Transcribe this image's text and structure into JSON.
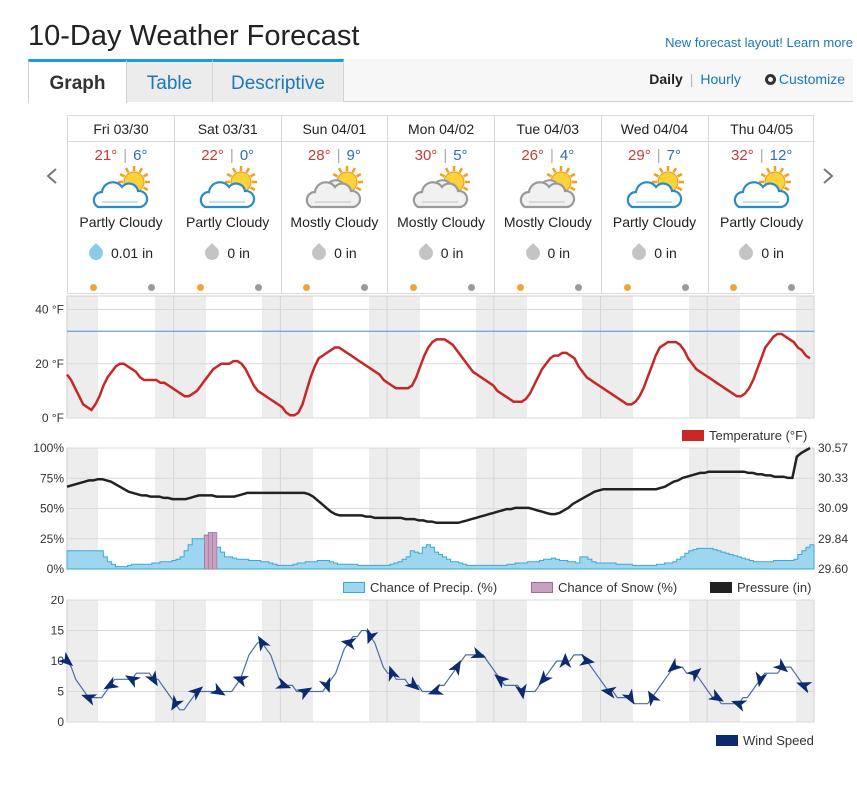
{
  "title": "10-Day Weather Forecast",
  "top_link": "New forecast layout! Learn more",
  "tabs": [
    {
      "label": "Graph"
    },
    {
      "label": "Table"
    },
    {
      "label": "Descriptive"
    }
  ],
  "view": {
    "daily": "Daily",
    "separator": "|",
    "hourly": "Hourly",
    "customize": "Customize"
  },
  "days": [
    {
      "date": "Fri 03/30",
      "hi": "21°",
      "lo": "6°",
      "cond": "Partly Cloudy",
      "icon": "partly-cloudy-icon",
      "precip": "0.01 in",
      "drop_color": "#8ccbe8"
    },
    {
      "date": "Sat 03/31",
      "hi": "22°",
      "lo": "0°",
      "cond": "Partly Cloudy",
      "icon": "partly-cloudy-icon",
      "precip": "0 in",
      "drop_color": "#c4c4c4"
    },
    {
      "date": "Sun 04/01",
      "hi": "28°",
      "lo": "9°",
      "cond": "Mostly Cloudy",
      "icon": "mostly-cloudy-icon",
      "precip": "0 in",
      "drop_color": "#c4c4c4"
    },
    {
      "date": "Mon 04/02",
      "hi": "30°",
      "lo": "5°",
      "cond": "Mostly Cloudy",
      "icon": "mostly-cloudy-icon",
      "precip": "0 in",
      "drop_color": "#c4c4c4"
    },
    {
      "date": "Tue 04/03",
      "hi": "26°",
      "lo": "4°",
      "cond": "Mostly Cloudy",
      "icon": "mostly-cloudy-icon",
      "precip": "0 in",
      "drop_color": "#c4c4c4"
    },
    {
      "date": "Wed 04/04",
      "hi": "29°",
      "lo": "7°",
      "cond": "Partly Cloudy",
      "icon": "partly-cloudy-icon",
      "precip": "0 in",
      "drop_color": "#c4c4c4"
    },
    {
      "date": "Thu 04/05",
      "hi": "32°",
      "lo": "12°",
      "cond": "Partly Cloudy",
      "icon": "partly-cloudy-icon",
      "precip": "0 in",
      "drop_color": "#c4c4c4"
    }
  ],
  "colors": {
    "temp_line": "#c62828",
    "pressure_line": "#222222",
    "precip_fill": "#9ed6ef",
    "precip_stroke": "#3aa9d6",
    "snow_fill": "#c9a0c0",
    "wind_line": "#4a6ea8",
    "wind_arrow": "#0c2a6e",
    "freeze_line": "#6a9fd9"
  },
  "chart_data": [
    {
      "type": "line",
      "yticks": [
        "40 °F",
        "20 °F",
        "0 °F"
      ],
      "ylim": [
        0,
        45
      ],
      "freeze_line": 32,
      "series": [
        {
          "name": "Temperature (°F)",
          "values": [
            16,
            14,
            11,
            8,
            5,
            4,
            3,
            5,
            8,
            12,
            15,
            17,
            19,
            20,
            20,
            19,
            18,
            17,
            15,
            14,
            14,
            14,
            14,
            13,
            13,
            12,
            11,
            10,
            9,
            8,
            8,
            9,
            10,
            12,
            14,
            16,
            18,
            19,
            20,
            20,
            20,
            21,
            21,
            20,
            18,
            15,
            12,
            10,
            9,
            8,
            7,
            6,
            5,
            4,
            2,
            1,
            1,
            2,
            5,
            10,
            15,
            19,
            22,
            23,
            24,
            25,
            26,
            26,
            25,
            24,
            23,
            22,
            21,
            20,
            19,
            18,
            17,
            16,
            14,
            13,
            12,
            11,
            11,
            11,
            11,
            12,
            15,
            19,
            23,
            26,
            28,
            29,
            29,
            29,
            28,
            27,
            25,
            23,
            21,
            19,
            17,
            16,
            15,
            14,
            13,
            12,
            10,
            9,
            8,
            7,
            6,
            6,
            6,
            7,
            9,
            12,
            15,
            18,
            20,
            22,
            23,
            23,
            24,
            24,
            23,
            22,
            19,
            17,
            15,
            14,
            13,
            12,
            11,
            10,
            9,
            8,
            7,
            6,
            5,
            5,
            6,
            8,
            11,
            15,
            19,
            23,
            26,
            27,
            28,
            28,
            28,
            27,
            25,
            22,
            20,
            18,
            17,
            16,
            15,
            14,
            13,
            12,
            11,
            10,
            9,
            8,
            8,
            9,
            11,
            14,
            18,
            22,
            26,
            28,
            30,
            31,
            31,
            30,
            29,
            28,
            26,
            25,
            23,
            22
          ]
        }
      ]
    },
    {
      "type": "line",
      "yticks_left": [
        "100%",
        "75%",
        "50%",
        "25%",
        "0%"
      ],
      "yticks_right": [
        "30.57",
        "30.33",
        "30.09",
        "29.84",
        "29.60"
      ],
      "ylim_left": [
        0,
        100
      ],
      "ylim_right": [
        29.6,
        30.57
      ],
      "series": [
        {
          "name": "Chance of Precip. (%)",
          "values": [
            15,
            15,
            15,
            15,
            15,
            15,
            15,
            15,
            15,
            10,
            6,
            4,
            2,
            2,
            2,
            3,
            4,
            4,
            4,
            4,
            4,
            5,
            5,
            6,
            6,
            6,
            7,
            8,
            10,
            15,
            20,
            25,
            25,
            25,
            28,
            30,
            30,
            18,
            14,
            10,
            10,
            9,
            8,
            8,
            8,
            7,
            7,
            7,
            6,
            6,
            5,
            4,
            3,
            3,
            3,
            3,
            4,
            5,
            5,
            6,
            6,
            6,
            7,
            7,
            7,
            6,
            5,
            4,
            4,
            4,
            4,
            4,
            3,
            3,
            3,
            3,
            3,
            3,
            3,
            3,
            4,
            5,
            6,
            8,
            10,
            15,
            14,
            13,
            18,
            20,
            18,
            14,
            12,
            10,
            8,
            6,
            6,
            5,
            4,
            3,
            3,
            3,
            3,
            3,
            3,
            3,
            3,
            3,
            3,
            4,
            4,
            5,
            5,
            5,
            6,
            6,
            6,
            7,
            8,
            8,
            9,
            8,
            7,
            7,
            6,
            6,
            5,
            10,
            10,
            8,
            6,
            5,
            5,
            5,
            5,
            5,
            4,
            4,
            4,
            4,
            3,
            3,
            3,
            3,
            3,
            3,
            4,
            4,
            5,
            5,
            6,
            8,
            10,
            13,
            15,
            16,
            17,
            17,
            17,
            17,
            16,
            15,
            14,
            13,
            12,
            11,
            10,
            9,
            8,
            7,
            6,
            6,
            6,
            6,
            6,
            7,
            7,
            7,
            7,
            7,
            8,
            12,
            15,
            18,
            20
          ]
        },
        {
          "name": "Chance of Snow (%)",
          "values": [
            0,
            0,
            0,
            0,
            0,
            0,
            0,
            0,
            0,
            0,
            0,
            0,
            0,
            0,
            0,
            0,
            0,
            0,
            0,
            0,
            0,
            0,
            0,
            0,
            0,
            0,
            0,
            0,
            0,
            0,
            0,
            0,
            0,
            0,
            28,
            30,
            30,
            0,
            0,
            0,
            0,
            0,
            0,
            0,
            0,
            0,
            0,
            0,
            0,
            0,
            0,
            0,
            0,
            0,
            0,
            0,
            0,
            0,
            0,
            0,
            0,
            0,
            0,
            0,
            0,
            0,
            0,
            0,
            0,
            0,
            0,
            0,
            0,
            0,
            0,
            0,
            0,
            0,
            0,
            0,
            0,
            0,
            0,
            0,
            0,
            0,
            0,
            0,
            0,
            0,
            0,
            0,
            0,
            0,
            0,
            0,
            0,
            0,
            0,
            0,
            0,
            0,
            0,
            0,
            0,
            0,
            0,
            0,
            0,
            0,
            0,
            0,
            0,
            0,
            0,
            0,
            0,
            0,
            0,
            0,
            0,
            0,
            0,
            0,
            0,
            0,
            0,
            0,
            0,
            0,
            0,
            0,
            0,
            0,
            0,
            0,
            0,
            0,
            0,
            0,
            0,
            0,
            0,
            0,
            0,
            0,
            0,
            0,
            0,
            0,
            0,
            0,
            0,
            0,
            0,
            0,
            0,
            0,
            0,
            0,
            0,
            0,
            0,
            0,
            0,
            0,
            0,
            0,
            0,
            0,
            0,
            0,
            0,
            0,
            0,
            0,
            0,
            0,
            0,
            0,
            0,
            0,
            0,
            0,
            0,
            0,
            0,
            0,
            0
          ]
        },
        {
          "name": "Pressure (in)",
          "values": [
            30.26,
            30.27,
            30.28,
            30.29,
            30.3,
            30.31,
            30.31,
            30.32,
            30.32,
            30.31,
            30.3,
            30.28,
            30.26,
            30.24,
            30.22,
            30.21,
            30.2,
            30.19,
            30.19,
            30.18,
            30.18,
            30.18,
            30.17,
            30.17,
            30.16,
            30.16,
            30.16,
            30.16,
            30.17,
            30.18,
            30.19,
            30.19,
            30.19,
            30.19,
            30.18,
            30.18,
            30.18,
            30.18,
            30.18,
            30.19,
            30.2,
            30.21,
            30.21,
            30.21,
            30.21,
            30.21,
            30.21,
            30.21,
            30.21,
            30.21,
            30.21,
            30.21,
            30.21,
            30.21,
            30.21,
            30.2,
            30.18,
            30.15,
            30.12,
            30.09,
            30.06,
            30.04,
            30.03,
            30.03,
            30.03,
            30.03,
            30.03,
            30.03,
            30.02,
            30.02,
            30.01,
            30.01,
            30.01,
            30.01,
            30.01,
            30.01,
            30.01,
            30.0,
            30.0,
            30.0,
            29.99,
            29.99,
            29.98,
            29.98,
            29.97,
            29.97,
            29.97,
            29.97,
            29.97,
            29.97,
            29.98,
            29.99,
            30.0,
            30.01,
            30.02,
            30.03,
            30.04,
            30.05,
            30.06,
            30.07,
            30.08,
            30.08,
            30.09,
            30.09,
            30.09,
            30.09,
            30.08,
            30.07,
            30.06,
            30.05,
            30.04,
            30.04,
            30.05,
            30.07,
            30.09,
            30.12,
            30.14,
            30.16,
            30.18,
            30.2,
            30.22,
            30.23,
            30.24,
            30.24,
            30.24,
            30.24,
            30.24,
            30.24,
            30.24,
            30.24,
            30.24,
            30.24,
            30.24,
            30.24,
            30.24,
            30.25,
            30.26,
            30.28,
            30.3,
            30.31,
            30.33,
            30.34,
            30.35,
            30.36,
            30.37,
            30.37,
            30.38,
            30.38,
            30.38,
            30.38,
            30.38,
            30.38,
            30.38,
            30.38,
            30.38,
            30.37,
            30.37,
            30.36,
            30.36,
            30.35,
            30.35,
            30.34,
            30.34,
            30.34,
            30.33,
            30.33,
            30.5,
            30.53,
            30.55,
            30.57
          ]
        }
      ]
    },
    {
      "type": "line",
      "yticks": [
        "20",
        "15",
        "10",
        "5",
        "0"
      ],
      "ylim": [
        0,
        20
      ],
      "series": [
        {
          "name": "Wind Speed",
          "values": [
            10,
            9,
            7,
            6,
            5,
            4,
            4,
            4,
            4,
            5,
            6,
            7,
            7,
            7,
            7,
            7,
            8,
            8,
            8,
            8,
            7,
            7,
            6,
            5,
            4,
            3,
            2,
            2,
            3,
            4,
            5,
            5,
            5,
            5,
            5,
            5,
            5,
            5,
            5,
            6,
            7,
            9,
            11,
            12,
            13,
            13,
            12,
            11,
            9,
            7,
            6,
            6,
            6,
            5,
            5,
            5,
            5,
            5,
            5,
            5,
            6,
            7,
            8,
            10,
            12,
            13,
            14,
            14,
            15,
            15,
            14,
            13,
            11,
            9,
            8,
            8,
            7,
            7,
            7,
            6,
            6,
            6,
            5,
            5,
            5,
            5,
            6,
            6,
            7,
            8,
            9,
            10,
            11,
            11,
            11,
            11,
            11,
            10,
            9,
            8,
            7,
            6,
            6,
            6,
            6,
            5,
            5,
            5,
            5,
            6,
            7,
            8,
            9,
            10,
            10,
            10,
            10,
            11,
            11,
            11,
            10,
            9,
            8,
            7,
            6,
            5,
            5,
            4,
            4,
            4,
            4,
            3,
            3,
            3,
            3,
            4,
            5,
            6,
            7,
            8,
            9,
            9,
            9,
            8,
            8,
            8,
            7,
            6,
            5,
            4,
            4,
            3,
            3,
            3,
            3,
            3,
            4,
            4,
            5,
            6,
            7,
            8,
            8,
            8,
            8,
            9,
            9,
            9,
            8,
            7,
            6,
            5
          ]
        }
      ]
    }
  ],
  "legends": {
    "temperature": "Temperature (°F)",
    "precip": "Chance of Precip. (%)",
    "snow": "Chance of Snow (%)",
    "pressure": "Pressure (in)",
    "wind": "Wind Speed"
  }
}
